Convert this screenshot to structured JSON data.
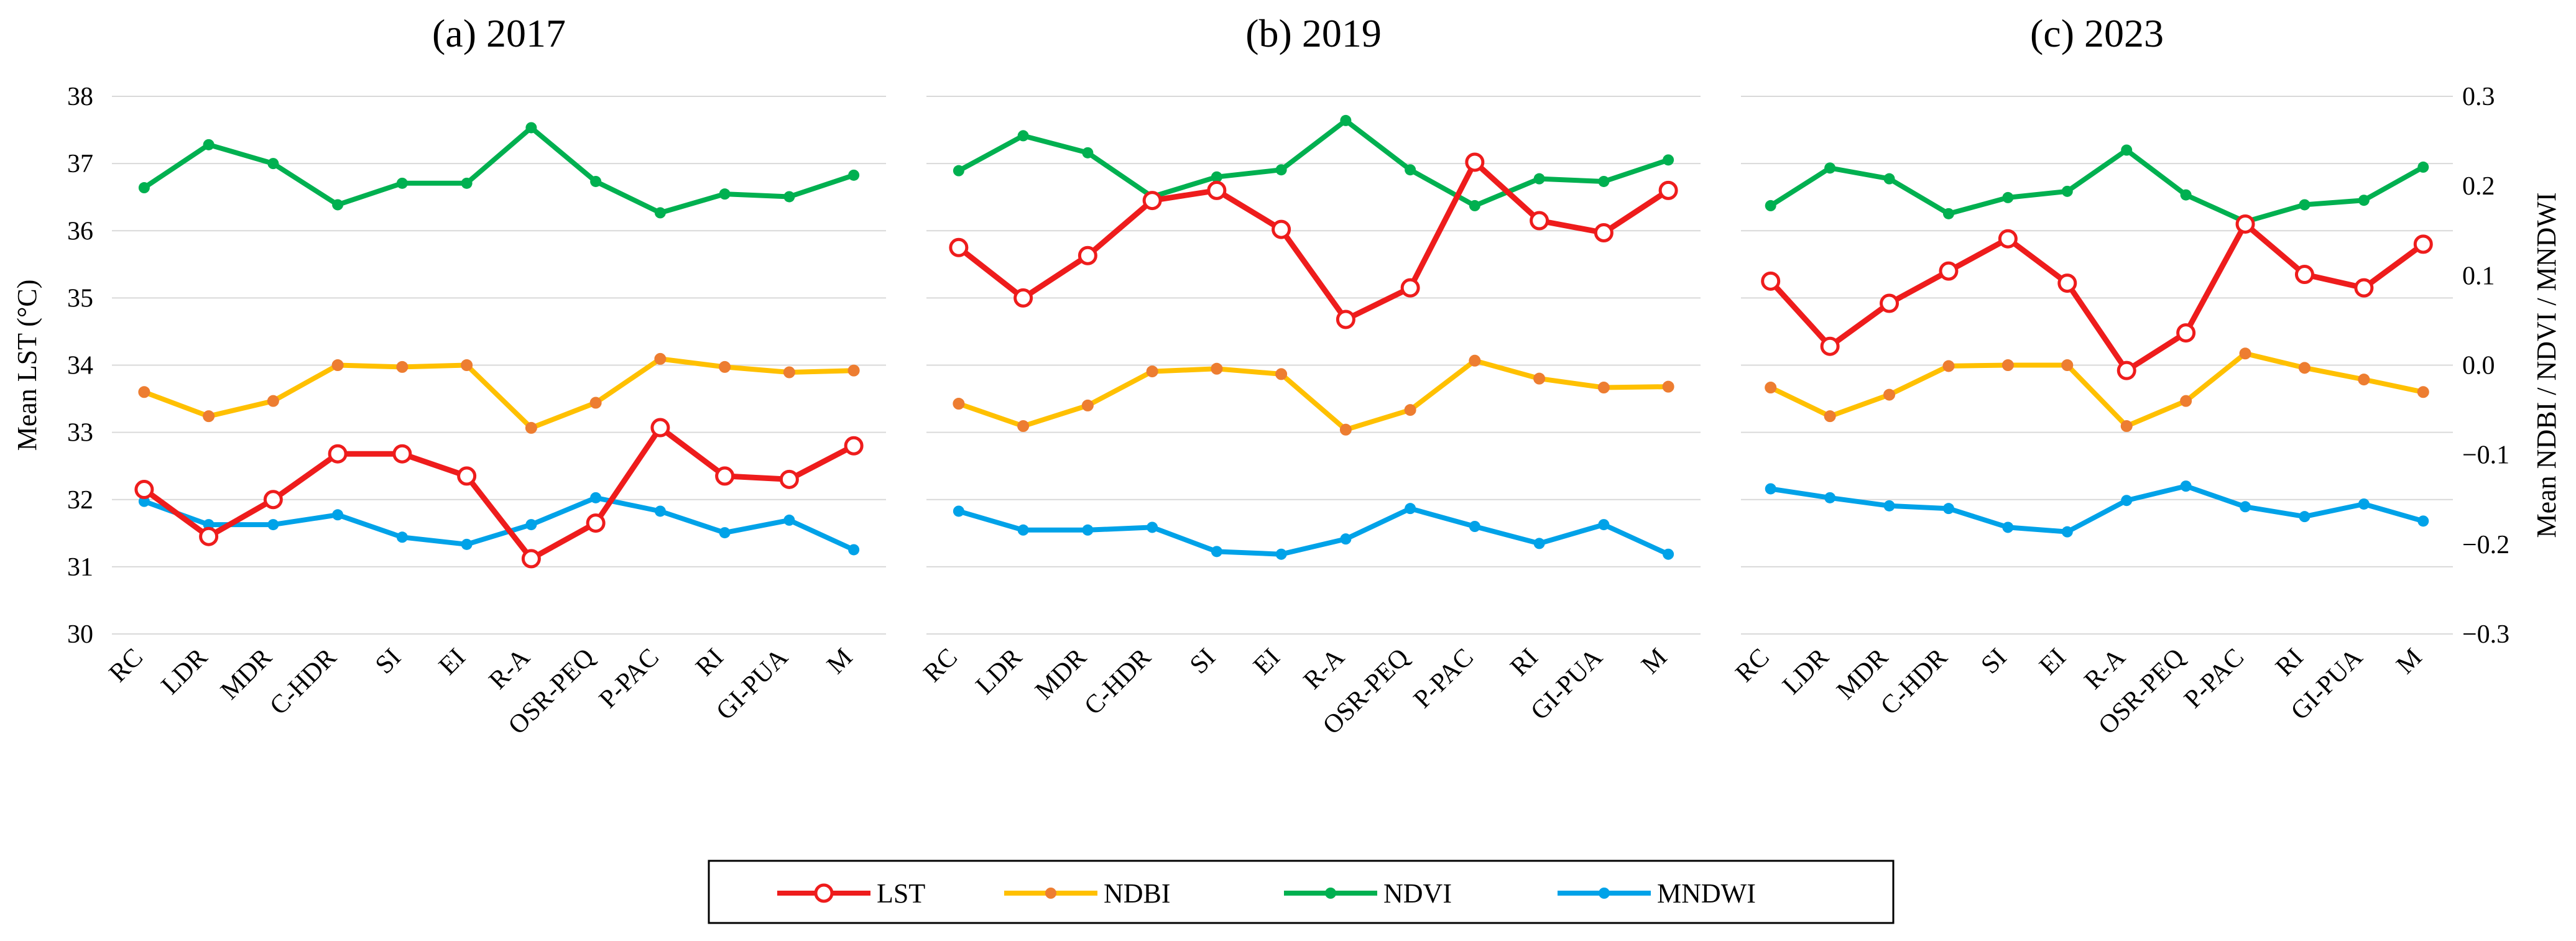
{
  "chart_data": {
    "type": "line",
    "categories": [
      "RC",
      "LDR",
      "MDR",
      "C-HDR",
      "SI",
      "EI",
      "R-A",
      "OSR-PEQ",
      "P-PAC",
      "RI",
      "GI-PUA",
      "M"
    ],
    "left_axis": {
      "label": "Mean LST (°C)",
      "ylim": [
        30,
        38
      ],
      "ticks": [
        "30",
        "31",
        "32",
        "33",
        "34",
        "35",
        "36",
        "37",
        "38"
      ]
    },
    "right_axis": {
      "label": "Mean NDBI / NDVI / MNDWI",
      "ylim": [
        -0.3,
        0.3
      ],
      "ticks": [
        "-0.3",
        "-0.2",
        "-0.1",
        "0.0",
        "0.1",
        "0.2",
        "0.3"
      ]
    },
    "panels": [
      {
        "title": "(a) 2017",
        "series": [
          {
            "name": "LST",
            "axis": "left",
            "values": [
              32.15,
              31.45,
              32.0,
              32.68,
              32.68,
              32.35,
              31.12,
              31.65,
              33.07,
              32.35,
              32.3,
              32.8
            ]
          },
          {
            "name": "NDBI",
            "axis": "right",
            "values": [
              -0.03,
              -0.057,
              -0.04,
              0.0,
              -0.002,
              0.0,
              -0.07,
              -0.042,
              0.007,
              -0.002,
              -0.008,
              -0.006
            ]
          },
          {
            "name": "NDVI",
            "axis": "right",
            "values": [
              0.198,
              0.246,
              0.225,
              0.179,
              0.203,
              0.203,
              0.265,
              0.205,
              0.17,
              0.191,
              0.188,
              0.212
            ]
          },
          {
            "name": "MNDWI",
            "axis": "right",
            "values": [
              -0.152,
              -0.178,
              -0.178,
              -0.167,
              -0.192,
              -0.2,
              -0.178,
              -0.148,
              -0.163,
              -0.187,
              -0.173,
              -0.206
            ]
          }
        ]
      },
      {
        "title": "(b) 2019",
        "series": [
          {
            "name": "LST",
            "axis": "left",
            "values": [
              35.75,
              35.0,
              35.63,
              36.45,
              36.6,
              36.02,
              34.68,
              35.15,
              37.02,
              36.15,
              35.97,
              36.6
            ]
          },
          {
            "name": "NDBI",
            "axis": "right",
            "values": [
              -0.043,
              -0.068,
              -0.045,
              -0.007,
              -0.004,
              -0.01,
              -0.072,
              -0.05,
              0.005,
              -0.015,
              -0.025,
              -0.024
            ]
          },
          {
            "name": "NDVI",
            "axis": "right",
            "values": [
              0.217,
              0.256,
              0.237,
              0.188,
              0.21,
              0.218,
              0.273,
              0.218,
              0.178,
              0.208,
              0.205,
              0.229
            ]
          },
          {
            "name": "MNDWI",
            "axis": "right",
            "values": [
              -0.163,
              -0.184,
              -0.184,
              -0.181,
              -0.208,
              -0.211,
              -0.194,
              -0.16,
              -0.18,
              -0.199,
              -0.178,
              -0.211
            ]
          }
        ]
      },
      {
        "title": "(c) 2023",
        "series": [
          {
            "name": "LST",
            "axis": "left",
            "values": [
              35.25,
              34.28,
              34.92,
              35.4,
              35.88,
              35.22,
              33.92,
              34.48,
              36.1,
              35.35,
              35.15,
              35.8
            ]
          },
          {
            "name": "NDBI",
            "axis": "right",
            "values": [
              -0.025,
              -0.057,
              -0.033,
              -0.001,
              0.0,
              0.0,
              -0.068,
              -0.04,
              0.013,
              -0.003,
              -0.016,
              -0.03
            ]
          },
          {
            "name": "NDVI",
            "axis": "right",
            "values": [
              0.178,
              0.22,
              0.208,
              0.169,
              0.187,
              0.194,
              0.24,
              0.19,
              0.16,
              0.179,
              0.184,
              0.221
            ]
          },
          {
            "name": "MNDWI",
            "axis": "right",
            "values": [
              -0.138,
              -0.148,
              -0.157,
              -0.16,
              -0.181,
              -0.186,
              -0.151,
              -0.135,
              -0.158,
              -0.169,
              -0.155,
              -0.174
            ]
          }
        ]
      }
    ],
    "legend": {
      "position": "bottom-center",
      "entries": [
        "LST",
        "NDBI",
        "NDVI",
        "MNDWI"
      ]
    },
    "colors": {
      "LST": "#ee1c1c",
      "NDBI": "#ffc000",
      "NDVI": "#00b050",
      "MNDWI": "#00a2e8",
      "NDBI_marker": "#ed7d31",
      "grid": "#d9d9d9"
    }
  }
}
